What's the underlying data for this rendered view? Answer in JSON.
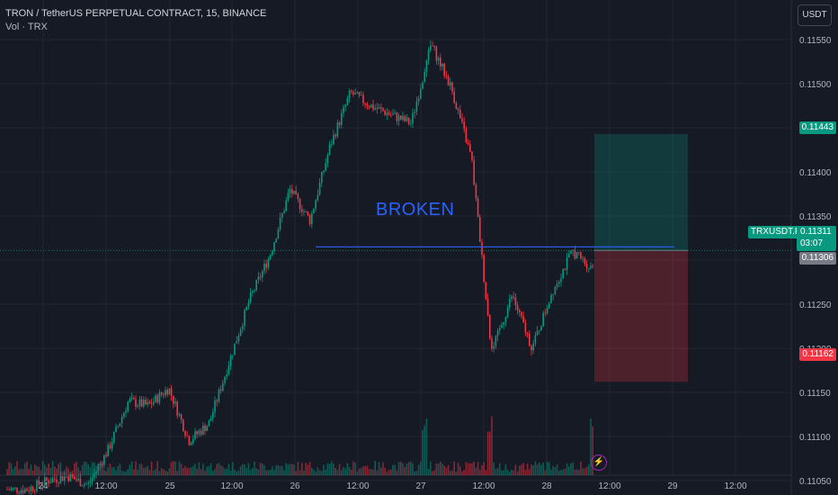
{
  "header": {
    "title": "TRON / TetherUS PERPETUAL CONTRACT, 15, BINANCE",
    "indicator": "Vol · TRX"
  },
  "currency_button": "USDT",
  "annotation": "BROKEN",
  "tags": {
    "take_profit": "0.11443",
    "stop_loss": "0.11162",
    "symbol": "TRXUSDT.P",
    "current_price": "0.11311",
    "countdown": "03:07",
    "prev_price": "0.11306"
  },
  "colors": {
    "up": "#089981",
    "down": "#f23645",
    "line": "#2962ff",
    "bg": "#161a25"
  },
  "chart_data": {
    "type": "candlestick",
    "y_ticks": [
      0.1155,
      0.115,
      0.1145,
      0.114,
      0.1135,
      0.113,
      0.1125,
      0.112,
      0.1115,
      0.111,
      0.1105
    ],
    "x_ticks": [
      "24",
      "12:00",
      "25",
      "12:00",
      "26",
      "12:00",
      "27",
      "12:00",
      "28",
      "12:00",
      "29",
      "12:00"
    ],
    "ylim": [
      0.11022,
      0.11604
    ],
    "price_path": [
      [
        0.1104,
        0.1104
      ],
      [
        0.1105,
        0.1103
      ],
      [
        0.1106,
        0.1104
      ],
      [
        0.1106,
        0.1105
      ],
      [
        0.1106,
        0.1103
      ],
      [
        0.1107,
        0.111
      ],
      [
        0.1112,
        0.1116
      ],
      [
        0.1115,
        0.1112
      ],
      [
        0.1118,
        0.1113
      ],
      [
        0.1112,
        0.1107
      ],
      [
        0.1113,
        0.111
      ],
      [
        0.1116,
        0.1121
      ],
      [
        0.1124,
        0.1127
      ],
      [
        0.1128,
        0.1133
      ],
      [
        0.1138,
        0.1138
      ],
      [
        0.1136,
        0.1133
      ],
      [
        0.1139,
        0.1147
      ],
      [
        0.115,
        0.1148
      ],
      [
        0.1146,
        0.1149
      ],
      [
        0.1148,
        0.1145
      ],
      [
        0.1143,
        0.1148
      ],
      [
        0.1155,
        0.1154
      ],
      [
        0.115,
        0.1149
      ],
      [
        0.1145,
        0.1138
      ],
      [
        0.1116,
        0.1123
      ],
      [
        0.1125,
        0.1127
      ],
      [
        0.1122,
        0.1118
      ],
      [
        0.1125,
        0.1128
      ],
      [
        0.1132,
        0.113
      ],
      [
        0.1128,
        0.113
      ]
    ],
    "volume_notes": "volume bars along the bottom with spikes near 12:00 on 27 and 28",
    "trade": {
      "entry": 0.11311,
      "take_profit": 0.11443,
      "stop_loss": 0.11162
    },
    "support_line": 0.11315
  }
}
